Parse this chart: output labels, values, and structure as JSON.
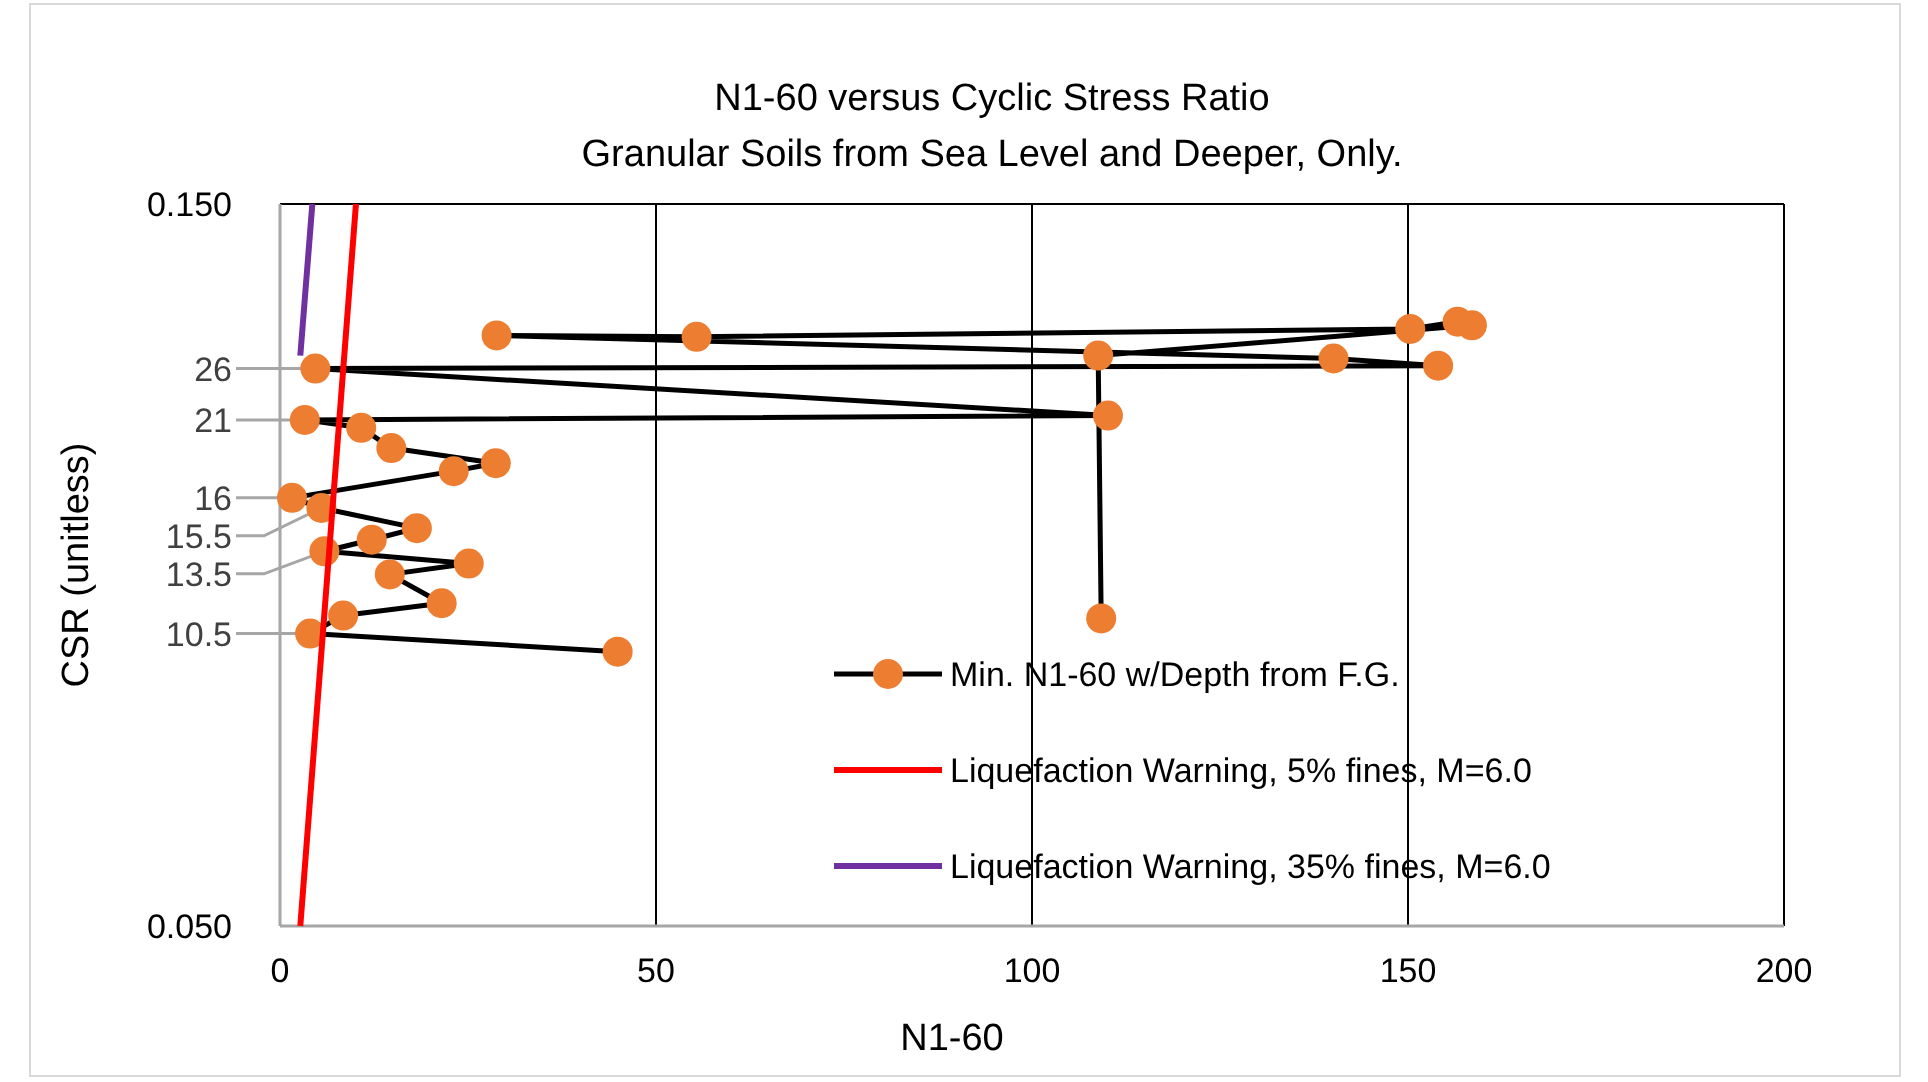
{
  "chart_data": {
    "type": "line",
    "title": "N1-60 versus Cyclic Stress Ratio",
    "subtitle": "Granular Soils from Sea Level and Deeper, Only.",
    "xlabel": "N1-60",
    "ylabel": "CSR (unitless)",
    "xlim": [
      0,
      200
    ],
    "xticks": [
      0,
      50,
      100,
      150,
      200
    ],
    "ylim": [
      0.05,
      0.15
    ],
    "yticks": [
      {
        "value": 0.05,
        "label": "0.050"
      },
      {
        "value": 0.15,
        "label": "0.150"
      }
    ],
    "grid": true,
    "legend": "bottom right",
    "series": [
      {
        "name": "Min. N1-60 w/Depth from F.G.",
        "color": "#ed7d31",
        "marker": "circle",
        "x": [
          44.9,
          4.0,
          8.4,
          21.5,
          14.6,
          25.1,
          5.9,
          12.2,
          18.2,
          5.5,
          1.6,
          23.1,
          28.7,
          14.8,
          10.8,
          3.3,
          110.1,
          4.7,
          154.0,
          140.1,
          28.8,
          55.4,
          150.3,
          156.6,
          158.5,
          108.8,
          109.2
        ],
        "values": [
          0.088,
          0.0905,
          0.093,
          0.0947,
          0.0987,
          0.1002,
          0.1019,
          0.1035,
          0.1051,
          0.1079,
          0.1093,
          0.113,
          0.1141,
          0.1162,
          0.119,
          0.1201,
          0.1207,
          0.1272,
          0.1276,
          0.1286,
          0.1318,
          0.1316,
          0.1327,
          0.1337,
          0.1332,
          0.129,
          0.0926
        ]
      },
      {
        "name": "Liquefaction Warning, 5% fines, M=6.0",
        "color": "#ff0000",
        "marker": "none",
        "x": [
          2.7,
          10.1
        ],
        "values": [
          0.05,
          0.15
        ]
      },
      {
        "name": "Liquefaction Warning, 35% fines, M=6.0",
        "color": "#7030a0",
        "marker": "none",
        "x": [
          2.7,
          4.3
        ],
        "values": [
          0.129,
          0.15
        ]
      }
    ],
    "annotations": [
      {
        "text": "26",
        "x": 4.7,
        "y": 0.1272
      },
      {
        "text": "21",
        "x": 3.3,
        "y": 0.1201
      },
      {
        "text": "16",
        "x": 1.6,
        "y": 0.1093
      },
      {
        "text": "15.5",
        "x": 5.5,
        "y": 0.1079
      },
      {
        "text": "13.5",
        "x": 5.9,
        "y": 0.1019
      },
      {
        "text": "10.5",
        "x": 4.0,
        "y": 0.0905
      }
    ]
  }
}
